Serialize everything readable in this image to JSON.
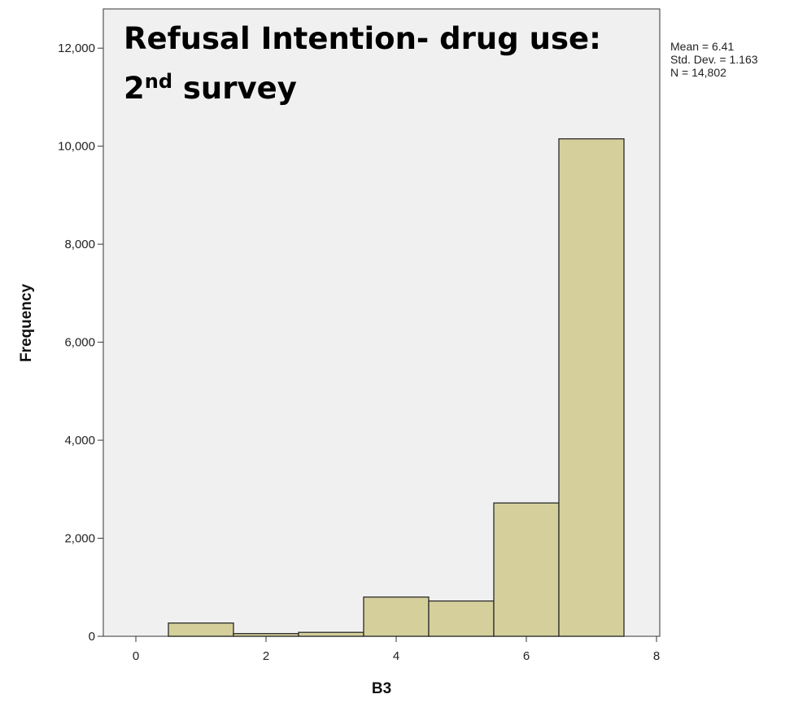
{
  "chart_data": {
    "type": "bar",
    "title": {
      "line1": "Refusal Intention- drug use:",
      "line2_main": "2",
      "line2_sup": "nd",
      "line2_rest": " survey"
    },
    "xlabel": "B3",
    "ylabel": "Frequency",
    "xlim": [
      -0.5,
      8.05
    ],
    "ylim": [
      0,
      12800
    ],
    "x_ticks": [
      0,
      2,
      4,
      6,
      8
    ],
    "x_tick_labels": [
      "0",
      "2",
      "4",
      "6",
      "8"
    ],
    "y_ticks": [
      0,
      2000,
      4000,
      6000,
      8000,
      10000,
      12000
    ],
    "y_tick_labels": [
      "0",
      "2,000",
      "4,000",
      "6,000",
      "8,000",
      "10,000",
      "12,000"
    ],
    "bin_width": 1,
    "categories": [
      "1",
      "2",
      "3",
      "4",
      "5",
      "6",
      "7"
    ],
    "bin_centers": [
      1,
      2,
      3,
      4,
      5,
      6,
      7
    ],
    "values": [
      270,
      55,
      80,
      800,
      720,
      2720,
      10150
    ],
    "stats": {
      "mean": "Mean = 6.41",
      "std": "Std. Dev. = 1.163",
      "n": "N = 14,802"
    },
    "grid": false,
    "legend": "none",
    "colors": {
      "bar_fill": "#d5d09b",
      "bar_stroke": "#2a2a2a",
      "plot_background": "#f0f0f0",
      "frame": "#555555"
    }
  }
}
